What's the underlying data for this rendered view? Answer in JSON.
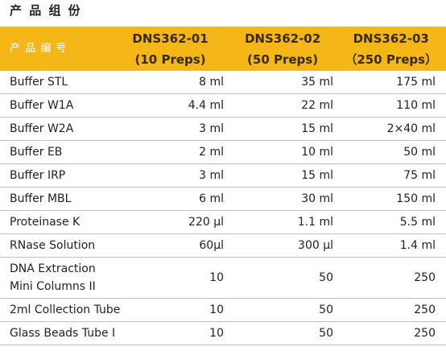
{
  "header": {
    "title": "产 品 组 份"
  },
  "table": {
    "columns": [
      "产 品 编 号",
      "DNS362-01\n(10 Preps)",
      "DNS362-02\n(50 Preps)",
      "DNS362-03\n（250 Preps）"
    ],
    "rows": [
      [
        "Buffer STL",
        "8 ml",
        "35 ml",
        "175 ml"
      ],
      [
        "Buffer W1A",
        "4.4 ml",
        "22 ml",
        "110 ml"
      ],
      [
        "Buffer W2A",
        "3 ml",
        "15 ml",
        "2×40 ml"
      ],
      [
        "Buffer EB",
        "2 ml",
        "10 ml",
        "50 ml"
      ],
      [
        "Buffer IRP",
        "3 ml",
        "15 ml",
        "75 ml"
      ],
      [
        "Buffer MBL",
        "6 ml",
        "30 ml",
        "150 ml"
      ],
      [
        "Proteinase K",
        "220 µl",
        "1.1 ml",
        "5.5 ml"
      ],
      [
        "RNase Solution",
        "60µl",
        "300 µl",
        "1.4 ml"
      ],
      [
        "DNA Extraction\nMini Columns II",
        "10",
        "50",
        "250"
      ],
      [
        "2ml Collection Tube",
        "10",
        "50",
        "250"
      ],
      [
        "Glass Beads Tube I",
        "10",
        "50",
        "250"
      ]
    ]
  }
}
